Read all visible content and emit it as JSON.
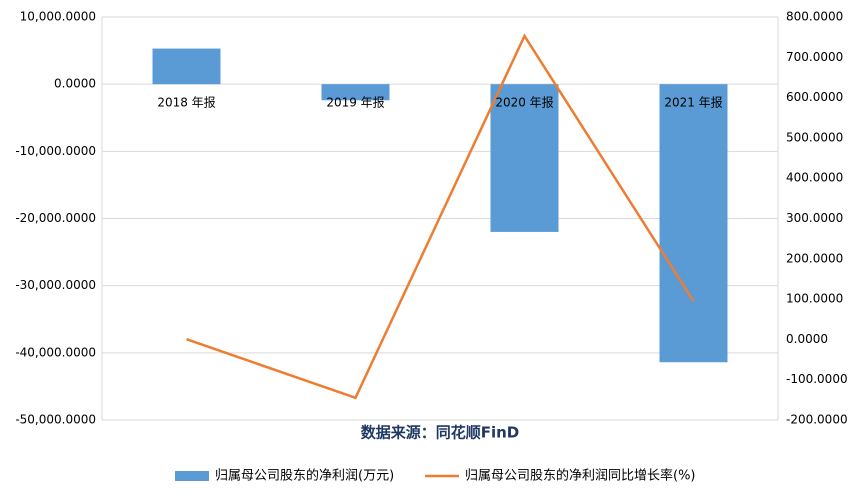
{
  "chart_data": {
    "type": "bar-line",
    "categories": [
      "2018 年报",
      "2019 年报",
      "2020 年报",
      "2021 年报"
    ],
    "series": [
      {
        "name": "归属母公司股东的净利润(万元)",
        "type": "bar",
        "color": "#5b9bd5",
        "values": [
          5300,
          -2400,
          -22000,
          -41400
        ]
      },
      {
        "name": "归属母公司股东的净利润同比增长率(%)",
        "type": "line",
        "axis": "y2",
        "color": "#ed7d31",
        "values": [
          0.5,
          -145,
          753,
          95
        ]
      }
    ],
    "ylim": [
      -50000,
      10000
    ],
    "yticks": [
      {
        "value": 10000,
        "label": "10,000.0000"
      },
      {
        "value": 0,
        "label": "0.0000"
      },
      {
        "value": -10000,
        "label": "-10,000.0000"
      },
      {
        "value": -20000,
        "label": "-20,000.0000"
      },
      {
        "value": -30000,
        "label": "-30,000.0000"
      },
      {
        "value": -40000,
        "label": "-40,000.0000"
      },
      {
        "value": -50000,
        "label": "-50,000.0000"
      }
    ],
    "y2lim": [
      -200,
      800
    ],
    "y2ticks": [
      {
        "value": 800,
        "label": "800.0000"
      },
      {
        "value": 700,
        "label": "700.0000"
      },
      {
        "value": 600,
        "label": "600.0000"
      },
      {
        "value": 500,
        "label": "500.0000"
      },
      {
        "value": 400,
        "label": "400.0000"
      },
      {
        "value": 300,
        "label": "300.0000"
      },
      {
        "value": 200,
        "label": "200.0000"
      },
      {
        "value": 100,
        "label": "100.0000"
      },
      {
        "value": 0,
        "label": "0.0000"
      },
      {
        "value": -100,
        "label": "-100.0000"
      },
      {
        "value": -200,
        "label": "-200.0000"
      }
    ],
    "grid": true,
    "source": "数据来源：同花顺FinD",
    "legend": "bottom"
  }
}
